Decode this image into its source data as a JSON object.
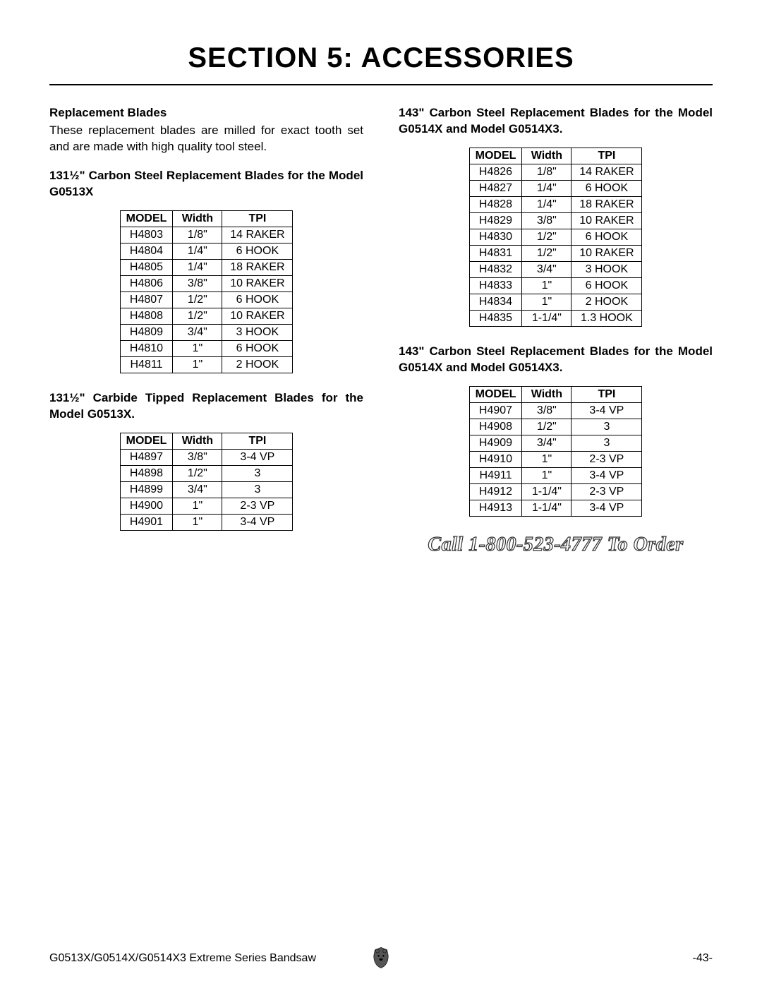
{
  "section_title": "SECTION 5: ACCESSORIES",
  "left": {
    "sub1_title": "Replacement Blades",
    "sub1_body": "These replacement blades are milled for exact tooth set and are made with high quality tool steel.",
    "table1_heading": "131½\" Carbon Steel Replacement Blades for the Model G0513X",
    "table2_heading": "131½\" Carbide Tipped Replacement Blades for the Model G0513X."
  },
  "right": {
    "table3_heading": "143\" Carbon Steel Replacement Blades for the Model G0514X and Model G0514X3.",
    "table4_heading": "143\" Carbon Steel Replacement Blades for the Model G0514X and Model G0514X3."
  },
  "headers": {
    "model": "MODEL",
    "width": "Width",
    "tpi": "TPI"
  },
  "tables": {
    "t1": [
      {
        "model": "H4803",
        "width": "1/8\"",
        "tpi": "14 RAKER"
      },
      {
        "model": "H4804",
        "width": "1/4\"",
        "tpi": "6 HOOK"
      },
      {
        "model": "H4805",
        "width": "1/4\"",
        "tpi": "18 RAKER"
      },
      {
        "model": "H4806",
        "width": "3/8\"",
        "tpi": "10 RAKER"
      },
      {
        "model": "H4807",
        "width": "1/2\"",
        "tpi": "6 HOOK"
      },
      {
        "model": "H4808",
        "width": "1/2\"",
        "tpi": "10 RAKER"
      },
      {
        "model": "H4809",
        "width": "3/4\"",
        "tpi": "3 HOOK"
      },
      {
        "model": "H4810",
        "width": "1\"",
        "tpi": "6 HOOK"
      },
      {
        "model": "H4811",
        "width": "1\"",
        "tpi": "2 HOOK"
      }
    ],
    "t2": [
      {
        "model": "H4897",
        "width": "3/8\"",
        "tpi": "3-4 VP"
      },
      {
        "model": "H4898",
        "width": "1/2\"",
        "tpi": "3"
      },
      {
        "model": "H4899",
        "width": "3/4\"",
        "tpi": "3"
      },
      {
        "model": "H4900",
        "width": "1\"",
        "tpi": "2-3 VP"
      },
      {
        "model": "H4901",
        "width": "1\"",
        "tpi": "3-4 VP"
      }
    ],
    "t3": [
      {
        "model": "H4826",
        "width": "1/8\"",
        "tpi": "14 RAKER"
      },
      {
        "model": "H4827",
        "width": "1/4\"",
        "tpi": "6 HOOK"
      },
      {
        "model": "H4828",
        "width": "1/4\"",
        "tpi": "18 RAKER"
      },
      {
        "model": "H4829",
        "width": "3/8\"",
        "tpi": "10 RAKER"
      },
      {
        "model": "H4830",
        "width": "1/2\"",
        "tpi": "6 HOOK"
      },
      {
        "model": "H4831",
        "width": "1/2\"",
        "tpi": "10 RAKER"
      },
      {
        "model": "H4832",
        "width": "3/4\"",
        "tpi": "3 HOOK"
      },
      {
        "model": "H4833",
        "width": "1\"",
        "tpi": "6 HOOK"
      },
      {
        "model": "H4834",
        "width": "1\"",
        "tpi": "2 HOOK"
      },
      {
        "model": "H4835",
        "width": "1-1/4\"",
        "tpi": "1.3 HOOK"
      }
    ],
    "t4": [
      {
        "model": "H4907",
        "width": "3/8\"",
        "tpi": "3-4 VP"
      },
      {
        "model": "H4908",
        "width": "1/2\"",
        "tpi": "3"
      },
      {
        "model": "H4909",
        "width": "3/4\"",
        "tpi": "3"
      },
      {
        "model": "H4910",
        "width": "1\"",
        "tpi": "2-3 VP"
      },
      {
        "model": "H4911",
        "width": "1\"",
        "tpi": "3-4 VP"
      },
      {
        "model": "H4912",
        "width": "1-1/4\"",
        "tpi": "2-3 VP"
      },
      {
        "model": "H4913",
        "width": "1-1/4\"",
        "tpi": "3-4 VP"
      }
    ]
  },
  "call_to_order": "Call 1-800-523-4777 To Order",
  "footer": {
    "left": "G0513X/G0514X/G0514X3 Extreme Series Bandsaw",
    "right": "-43-"
  },
  "colors": {
    "text": "#000000",
    "background": "#ffffff",
    "outline_dark": "#333333"
  }
}
